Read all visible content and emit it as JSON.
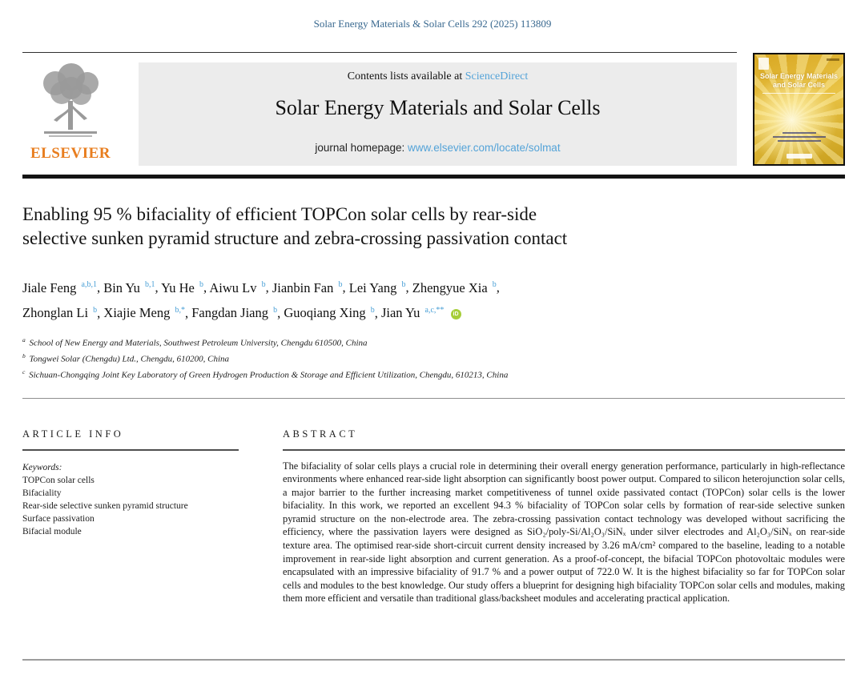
{
  "page": {
    "citation": "Solar Energy Materials & Solar Cells 292 (2025) 113809"
  },
  "header": {
    "contents_prefix": "Contents lists available at ",
    "sciencedirect_label": "ScienceDirect",
    "journal_name": "Solar Energy Materials and Solar Cells",
    "homepage_prefix": "journal homepage: ",
    "homepage_url": "www.elsevier.com/locate/solmat",
    "elsevier_label": "ELSEVIER",
    "cover": {
      "title_line1": "Solar Energy Materials",
      "title_line2": "and Solar Cells"
    }
  },
  "article": {
    "title_line1": "Enabling 95 % bifaciality of efficient TOPCon solar cells by rear-side",
    "title_line2": "selective sunken pyramid structure and zebra-crossing passivation contact",
    "authors": [
      {
        "name": "Jiale Feng",
        "sup": "a,b,1"
      },
      {
        "name": "Bin Yu",
        "sup": "b,1"
      },
      {
        "name": "Yu He",
        "sup": "b"
      },
      {
        "name": "Aiwu Lv",
        "sup": "b"
      },
      {
        "name": "Jianbin Fan",
        "sup": "b"
      },
      {
        "name": "Lei Yang",
        "sup": "b"
      },
      {
        "name": "Zhengyue Xia",
        "sup": "b"
      },
      {
        "name": "Zhonglan Li",
        "sup": "b"
      },
      {
        "name": "Xiajie Meng",
        "sup": "b,*"
      },
      {
        "name": "Fangdan Jiang",
        "sup": "b"
      },
      {
        "name": "Guoqiang Xing",
        "sup": "b"
      },
      {
        "name": "Jian Yu",
        "sup": "a,c,**",
        "orcid": true
      }
    ],
    "affiliations": [
      {
        "sup": "a",
        "text": "School of New Energy and Materials, Southwest Petroleum University, Chengdu 610500, China"
      },
      {
        "sup": "b",
        "text": "Tongwei Solar (Chengdu) Ltd., Chengdu, 610200, China"
      },
      {
        "sup": "c",
        "text": "Sichuan-Chongqing Joint Key Laboratory of Green Hydrogen Production & Storage and Efficient Utilization, Chengdu, 610213, China"
      }
    ]
  },
  "article_info": {
    "heading": "ARTICLE INFO",
    "keywords_label": "Keywords:",
    "keywords": [
      "TOPCon solar cells",
      "Bifaciality",
      "Rear-side selective sunken pyramid structure",
      "Surface passivation",
      "Bifacial module"
    ]
  },
  "abstract": {
    "heading": "ABSTRACT",
    "text": "The bifaciality of solar cells plays a crucial role in determining their overall energy generation performance, particularly in high-reflectance environments where enhanced rear-side light absorption can significantly boost power output. Compared to silicon heterojunction solar cells, a major barrier to the further increasing market competitiveness of tunnel oxide passivated contact (TOPCon) solar cells is the lower bifaciality. In this work, we reported an excellent 94.3 % bifaciality of TOPCon solar cells by formation of rear-side selective sunken pyramid structure on the non-electrode area. The zebra-crossing passivation contact technology was developed without sacrificing the efficiency, where the passivation layers were designed as SiO₂/poly-Si/Al₂O₃/SiNₓ under silver electrodes and Al₂O₃/SiNₓ on rear-side texture area. The optimised rear-side short-circuit current density increased by 3.26 mA/cm² compared to the baseline, leading to a notable improvement in rear-side light absorption and current generation. As a proof-of-concept, the bifacial TOPCon photovoltaic modules were encapsulated with an impressive bifaciality of 91.7 % and a power output of 722.0 W. It is the highest bifaciality so far for TOPCon solar cells and modules to the best knowledge. Our study offers a blueprint for designing high bifaciality TOPCon solar cells and modules, making them more efficient and versatile than traditional glass/backsheet modules and accelerating practical application."
  },
  "colors": {
    "link_blue": "#54a3d8",
    "citation_blue": "#38688f",
    "superscript_blue": "#4aa0d6",
    "elsevier_orange": "#e87d1e",
    "banner_gray": "#ececec",
    "orcid_green": "#a6ce39",
    "cover_gold": "#e9c345"
  }
}
